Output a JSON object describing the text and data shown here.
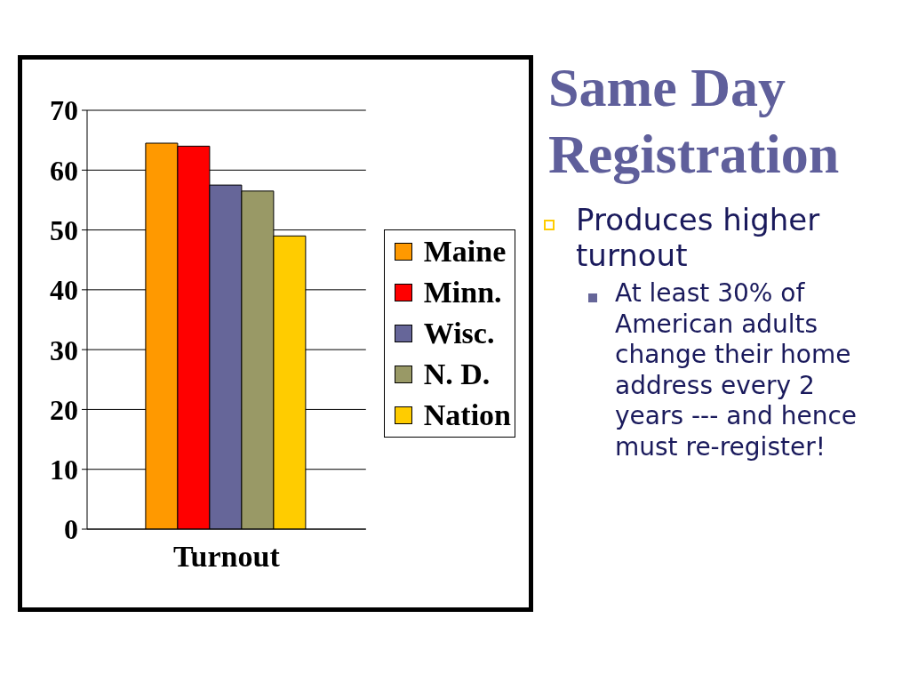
{
  "chart_data": {
    "type": "bar",
    "title": "Same Day Registration",
    "annotations": [
      "Produces higher turnout",
      "At least 30% of American adults change their home address every 2 years --- and hence must re-register!"
    ],
    "categories": [
      "Turnout"
    ],
    "series": [
      {
        "name": "Maine",
        "color": "#ff9900",
        "values": [
          64.5
        ]
      },
      {
        "name": "Minn.",
        "color": "#ff0000",
        "values": [
          64
        ]
      },
      {
        "name": "Wisc.",
        "color": "#666699",
        "values": [
          57.5
        ]
      },
      {
        "name": "N. D.",
        "color": "#999966",
        "values": [
          56.5
        ]
      },
      {
        "name": "Nation",
        "color": "#ffcc00",
        "values": [
          49
        ]
      }
    ],
    "ylim": [
      0,
      70
    ],
    "yticks": [
      0,
      10,
      20,
      30,
      40,
      50,
      60,
      70
    ],
    "grid": "y",
    "legend": "right"
  }
}
